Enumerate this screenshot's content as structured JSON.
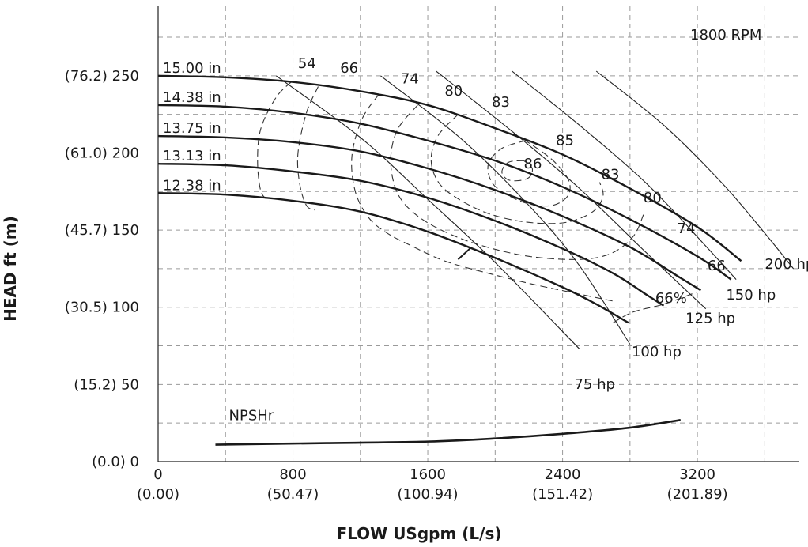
{
  "chart_data": {
    "type": "line",
    "title": "",
    "speed_label": "1800 RPM",
    "xlabel": "FLOW USgpm (L/s)",
    "ylabel": "HEAD ft (m)",
    "xlim": [
      0,
      3800
    ],
    "ylim": [
      0,
      295
    ],
    "grid": true,
    "x_ticks": [
      {
        "value": 0,
        "label": "0",
        "sub": "(0.00)"
      },
      {
        "value": 800,
        "label": "800",
        "sub": "(50.47)"
      },
      {
        "value": 1600,
        "label": "1600",
        "sub": "(100.94)"
      },
      {
        "value": 2400,
        "label": "2400",
        "sub": "(151.42)"
      },
      {
        "value": 3200,
        "label": "3200",
        "sub": "(201.89)"
      }
    ],
    "y_ticks": [
      {
        "value": 0,
        "label": "(0.0) 0"
      },
      {
        "value": 50,
        "label": "(15.2) 50"
      },
      {
        "value": 100,
        "label": "(30.5) 100"
      },
      {
        "value": 150,
        "label": "(45.7) 150"
      },
      {
        "value": 200,
        "label": "(61.0) 200"
      },
      {
        "value": 250,
        "label": "(76.2) 250"
      }
    ],
    "impeller_curves": [
      {
        "label": "15.00 in",
        "points": [
          [
            0,
            250
          ],
          [
            400,
            249
          ],
          [
            800,
            246
          ],
          [
            1200,
            240
          ],
          [
            1600,
            231
          ],
          [
            2000,
            216
          ],
          [
            2400,
            199
          ],
          [
            2800,
            177
          ],
          [
            3200,
            152
          ],
          [
            3460,
            130
          ]
        ]
      },
      {
        "label": "14.38 in",
        "points": [
          [
            0,
            231
          ],
          [
            400,
            230
          ],
          [
            800,
            226
          ],
          [
            1200,
            219
          ],
          [
            1600,
            208
          ],
          [
            2000,
            195
          ],
          [
            2400,
            178
          ],
          [
            2800,
            157
          ],
          [
            3200,
            133
          ],
          [
            3400,
            118
          ]
        ]
      },
      {
        "label": "13.75 in",
        "points": [
          [
            0,
            211
          ],
          [
            400,
            210
          ],
          [
            800,
            207
          ],
          [
            1200,
            201
          ],
          [
            1600,
            190
          ],
          [
            2000,
            176
          ],
          [
            2400,
            159
          ],
          [
            2800,
            139
          ],
          [
            3100,
            119
          ],
          [
            3220,
            111
          ]
        ]
      },
      {
        "label": "13.13 in",
        "points": [
          [
            0,
            193
          ],
          [
            400,
            192
          ],
          [
            800,
            188
          ],
          [
            1200,
            182
          ],
          [
            1600,
            171
          ],
          [
            2000,
            156
          ],
          [
            2400,
            138
          ],
          [
            2700,
            122
          ],
          [
            2900,
            108
          ],
          [
            3000,
            101
          ]
        ]
      },
      {
        "label": "12.38 in",
        "points": [
          [
            0,
            174
          ],
          [
            400,
            173
          ],
          [
            800,
            169
          ],
          [
            1200,
            162
          ],
          [
            1600,
            149
          ],
          [
            2000,
            132
          ],
          [
            2400,
            113
          ],
          [
            2600,
            102
          ],
          [
            2790,
            90
          ]
        ]
      }
    ],
    "efficiency_contours": [
      {
        "label": "54",
        "points": [
          [
            790,
            246
          ],
          [
            700,
            236
          ],
          [
            610,
            216
          ],
          [
            590,
            195
          ],
          [
            610,
            175
          ],
          [
            660,
            169
          ]
        ]
      },
      {
        "label": "66",
        "points": [
          [
            950,
            243
          ],
          [
            880,
            226
          ],
          [
            830,
            200
          ],
          [
            840,
            180
          ],
          [
            880,
            166
          ],
          [
            930,
            163
          ]
        ]
      },
      {
        "label": "74",
        "points": [
          [
            1310,
            238
          ],
          [
            1210,
            222
          ],
          [
            1150,
            198
          ],
          [
            1170,
            175
          ],
          [
            1250,
            158
          ],
          [
            1360,
            148
          ],
          [
            1500,
            140
          ],
          [
            1700,
            130
          ],
          [
            1960,
            122
          ],
          [
            2220,
            115
          ],
          [
            2480,
            109
          ],
          [
            2700,
            104
          ]
        ]
      },
      {
        "label": "80",
        "points": [
          [
            1540,
            231
          ],
          [
            1420,
            215
          ],
          [
            1380,
            195
          ],
          [
            1420,
            174
          ],
          [
            1530,
            160
          ],
          [
            1700,
            149
          ],
          [
            1920,
            140
          ],
          [
            2200,
            133
          ],
          [
            2500,
            131
          ],
          [
            2690,
            135
          ],
          [
            2820,
            146
          ],
          [
            2880,
            160
          ]
        ]
      },
      {
        "label": "83",
        "points": [
          [
            1780,
            225
          ],
          [
            1660,
            211
          ],
          [
            1620,
            195
          ],
          [
            1670,
            180
          ],
          [
            1800,
            169
          ],
          [
            1980,
            160
          ],
          [
            2200,
            155
          ],
          [
            2420,
            155
          ],
          [
            2580,
            162
          ],
          [
            2640,
            172
          ],
          [
            2620,
            181
          ]
        ]
      },
      {
        "label": "85",
        "points": [
          [
            2180,
            208
          ],
          [
            2040,
            203
          ],
          [
            1960,
            193
          ],
          [
            1980,
            181
          ],
          [
            2070,
            173
          ],
          [
            2200,
            167
          ],
          [
            2340,
            166
          ],
          [
            2430,
            172
          ],
          [
            2440,
            181
          ],
          [
            2380,
            191
          ],
          [
            2300,
            199
          ],
          [
            2180,
            208
          ]
        ]
      },
      {
        "label": "86",
        "points": [
          [
            2170,
            195
          ],
          [
            2080,
            194
          ],
          [
            2040,
            188
          ],
          [
            2070,
            183
          ],
          [
            2130,
            182
          ],
          [
            2200,
            184
          ],
          [
            2220,
            190
          ],
          [
            2170,
            195
          ]
        ]
      },
      {
        "label": "66%",
        "points": [
          [
            2700,
            90
          ],
          [
            2820,
            97
          ],
          [
            3000,
            102
          ],
          [
            3200,
            110
          ]
        ]
      }
    ],
    "power_lines": [
      {
        "label": "75 hp",
        "points": [
          [
            700,
            250
          ],
          [
            1200,
            210
          ],
          [
            1600,
            170
          ],
          [
            2000,
            129
          ],
          [
            2500,
            73
          ]
        ]
      },
      {
        "label": "100 hp",
        "points": [
          [
            1320,
            250
          ],
          [
            1800,
            209
          ],
          [
            2200,
            166
          ],
          [
            2500,
            127
          ],
          [
            2800,
            76
          ]
        ]
      },
      {
        "label": "125 hp",
        "points": [
          [
            1650,
            253
          ],
          [
            2100,
            214
          ],
          [
            2500,
            177
          ],
          [
            2900,
            135
          ],
          [
            3250,
            99
          ]
        ]
      },
      {
        "label": "150 hp",
        "points": [
          [
            2100,
            253
          ],
          [
            2500,
            218
          ],
          [
            2900,
            180
          ],
          [
            3230,
            142
          ],
          [
            3430,
            118
          ]
        ]
      },
      {
        "label": "200 hp",
        "points": [
          [
            2600,
            253
          ],
          [
            3000,
            218
          ],
          [
            3350,
            180
          ],
          [
            3600,
            148
          ],
          [
            3770,
            125
          ]
        ]
      }
    ],
    "npshr": {
      "label": "NPSHr",
      "points": [
        [
          340,
          11
        ],
        [
          1000,
          12
        ],
        [
          1600,
          13
        ],
        [
          2000,
          15
        ],
        [
          2400,
          18
        ],
        [
          2800,
          22
        ],
        [
          3100,
          27
        ]
      ]
    },
    "eff_labels": [
      {
        "text": "54",
        "x": 830,
        "y": 255
      },
      {
        "text": "66",
        "x": 1080,
        "y": 252
      },
      {
        "text": "74",
        "x": 1440,
        "y": 245
      },
      {
        "text": "80",
        "x": 1700,
        "y": 237
      },
      {
        "text": "83",
        "x": 1980,
        "y": 230
      },
      {
        "text": "85",
        "x": 2360,
        "y": 205
      },
      {
        "text": "86",
        "x": 2170,
        "y": 190
      },
      {
        "text": "83",
        "x": 2630,
        "y": 183
      },
      {
        "text": "80",
        "x": 2880,
        "y": 168
      },
      {
        "text": "74",
        "x": 3080,
        "y": 148
      },
      {
        "text": "66",
        "x": 3260,
        "y": 124
      },
      {
        "text": "66%",
        "x": 2950,
        "y": 103
      }
    ],
    "hp_labels": [
      {
        "text": "200 hp",
        "x": 3600,
        "y": 125
      },
      {
        "text": "150 hp",
        "x": 3370,
        "y": 105
      },
      {
        "text": "125 hp",
        "x": 3130,
        "y": 90
      },
      {
        "text": "100 hp",
        "x": 2810,
        "y": 68
      },
      {
        "text": "75 hp",
        "x": 2470,
        "y": 47
      }
    ]
  }
}
